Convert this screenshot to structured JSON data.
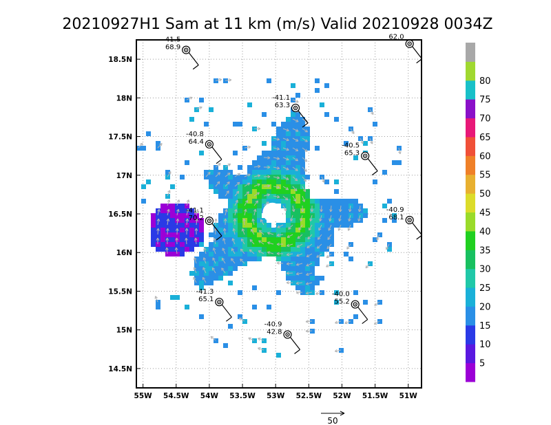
{
  "chart_data": {
    "type": "radar_wind_map",
    "title": "20210927H1 Sam at 11 km (m/s) Valid 20210928 0034Z",
    "lon_range": [
      -55.1,
      -50.8
    ],
    "lat_range": [
      14.25,
      18.75
    ],
    "x_ticks": [
      {
        "value": -55.0,
        "label": "55W"
      },
      {
        "value": -54.5,
        "label": "54.5W"
      },
      {
        "value": -54.0,
        "label": "54W"
      },
      {
        "value": -53.5,
        "label": "53.5W"
      },
      {
        "value": -53.0,
        "label": "53W"
      },
      {
        "value": -52.5,
        "label": "52.5W"
      },
      {
        "value": -52.0,
        "label": "52W"
      },
      {
        "value": -51.5,
        "label": "51.5W"
      },
      {
        "value": -51.0,
        "label": "51W"
      }
    ],
    "y_ticks": [
      {
        "value": 14.5,
        "label": "14.5N"
      },
      {
        "value": 15.0,
        "label": "15N"
      },
      {
        "value": 15.5,
        "label": "15.5N"
      },
      {
        "value": 16.0,
        "label": "16N"
      },
      {
        "value": 16.5,
        "label": "16.5N"
      },
      {
        "value": 17.0,
        "label": "17N"
      },
      {
        "value": 17.5,
        "label": "17.5N"
      },
      {
        "value": 18.0,
        "label": "18N"
      },
      {
        "value": 18.5,
        "label": "18.5N"
      }
    ],
    "grid": true,
    "storm_center": {
      "lon": -53.05,
      "lat": 16.52
    },
    "colorbar": {
      "ticks": [
        5,
        10,
        15,
        20,
        25,
        30,
        35,
        40,
        45,
        50,
        55,
        60,
        65,
        70,
        75,
        80
      ],
      "colors": [
        "#9b00d6",
        "#5a18e0",
        "#2a3ae6",
        "#2a8fe6",
        "#1ab0d8",
        "#20c8a8",
        "#18c060",
        "#20d020",
        "#9adb2a",
        "#dcdc2a",
        "#e8b030",
        "#ef8028",
        "#f05038",
        "#e81878",
        "#8a10c8",
        "#18c0c8",
        "#a0d830",
        "#a8a8a8"
      ]
    },
    "dropsondes": [
      {
        "lon": -54.35,
        "lat": 18.62,
        "labels": [
          "-41.5",
          "68.9"
        ]
      },
      {
        "lon": -50.98,
        "lat": 18.7,
        "labels": [
          "62.0"
        ]
      },
      {
        "lon": -52.7,
        "lat": 17.87,
        "labels": [
          "-41.1",
          "63.3"
        ]
      },
      {
        "lon": -54.0,
        "lat": 17.4,
        "labels": [
          "-40.8",
          "64.4"
        ]
      },
      {
        "lon": -51.65,
        "lat": 17.25,
        "labels": [
          "-40.5",
          "65.3"
        ]
      },
      {
        "lon": -54.0,
        "lat": 16.41,
        "labels": [
          "-41.1",
          "70.2"
        ]
      },
      {
        "lon": -50.98,
        "lat": 16.42,
        "labels": [
          "-40.9",
          "68.1"
        ]
      },
      {
        "lon": -53.85,
        "lat": 15.36,
        "labels": [
          "-41.3",
          "65.1"
        ]
      },
      {
        "lon": -51.8,
        "lat": 15.33,
        "labels": [
          "-40.0",
          "55.2"
        ]
      },
      {
        "lon": -52.82,
        "lat": 14.94,
        "labels": [
          "-40.9",
          "42.8"
        ]
      }
    ],
    "reference_vector": {
      "label": "50"
    }
  }
}
